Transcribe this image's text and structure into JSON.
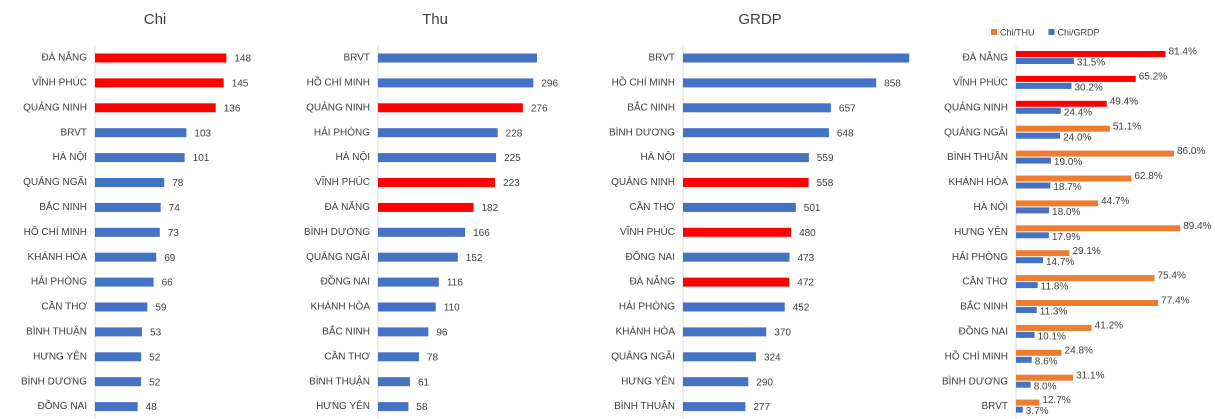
{
  "chart_data": [
    {
      "type": "bar",
      "orientation": "horizontal",
      "title": "Chi",
      "categories": [
        "ĐÀ NẴNG",
        "VĨNH PHÚC",
        "QUẢNG NINH",
        "BRVT",
        "HÀ NỘI",
        "QUẢNG NGÃI",
        "BẮC NINH",
        "HỒ CHÍ MINH",
        "KHÁNH HÒA",
        "HẢI PHÒNG",
        "CẦN THƠ",
        "BÌNH THUẬN",
        "HƯNG YÊN",
        "BÌNH DƯƠNG",
        "ĐỒNG NAI"
      ],
      "values": [
        148,
        145,
        136,
        103,
        101,
        78,
        74,
        73,
        69,
        66,
        59,
        53,
        52,
        52,
        48
      ],
      "colors": [
        "#ff0000",
        "#ff0000",
        "#ff0000",
        "#4472c4",
        "#4472c4",
        "#4472c4",
        "#4472c4",
        "#4472c4",
        "#4472c4",
        "#4472c4",
        "#4472c4",
        "#4472c4",
        "#4472c4",
        "#4472c4",
        "#4472c4"
      ],
      "xlim": [
        0,
        169
      ]
    },
    {
      "type": "bar",
      "orientation": "horizontal",
      "title": "Thu",
      "categories": [
        "BRVT",
        "HỒ CHÍ MINH",
        "QUẢNG NINH",
        "HẢI PHÒNG",
        "HÀ NỘI",
        "VĨNH PHÚC",
        "ĐÀ NẴNG",
        "BÌNH DƯƠNG",
        "QUẢNG NGÃI",
        "ĐỒNG NAI",
        "KHÁNH HÒA",
        "BẮC NINH",
        "CẦN THƠ",
        "BÌNH THUẬN",
        "HƯNG YÊN"
      ],
      "values": [
        303,
        296,
        276,
        228,
        225,
        223,
        182,
        166,
        152,
        116,
        110,
        96,
        78,
        61,
        58
      ],
      "value_labels": [
        null,
        "296",
        "276",
        "228",
        "225",
        "223",
        "182",
        "166",
        "152",
        "116",
        "110",
        "96",
        "78",
        "61",
        "58"
      ],
      "colors": [
        "#4472c4",
        "#4472c4",
        "#ff0000",
        "#4472c4",
        "#4472c4",
        "#ff0000",
        "#ff0000",
        "#4472c4",
        "#4472c4",
        "#4472c4",
        "#4472c4",
        "#4472c4",
        "#4472c4",
        "#4472c4",
        "#4472c4"
      ],
      "xlim": [
        0,
        343
      ]
    },
    {
      "type": "bar",
      "orientation": "horizontal",
      "title": "GRDP",
      "categories": [
        "BRVT",
        "HỒ CHÍ MINH",
        "BẮC NINH",
        "BÌNH DƯƠNG",
        "HÀ NỘI",
        "QUẢNG NINH",
        "CẦN THƠ",
        "VĨNH PHÚC",
        "ĐỒNG NAI",
        "ĐÀ NẴNG",
        "HẢI PHÒNG",
        "KHÁNH HÒA",
        "QUẢNG NGÃI",
        "HƯNG YÊN",
        "BÌNH THUẬN"
      ],
      "values": [
        1005,
        858,
        657,
        648,
        559,
        558,
        501,
        480,
        473,
        472,
        452,
        370,
        324,
        290,
        277
      ],
      "value_labels": [
        null,
        "858",
        "657",
        "648",
        "559",
        "558",
        "501",
        "480",
        "473",
        "472",
        "452",
        "370",
        "324",
        "290",
        "277"
      ],
      "colors": [
        "#4472c4",
        "#4472c4",
        "#4472c4",
        "#4472c4",
        "#4472c4",
        "#ff0000",
        "#4472c4",
        "#ff0000",
        "#4472c4",
        "#ff0000",
        "#4472c4",
        "#4472c4",
        "#4472c4",
        "#4472c4",
        "#4472c4"
      ],
      "xlim": [
        0,
        1066
      ]
    },
    {
      "type": "grouped_bar",
      "orientation": "horizontal",
      "legend": "top",
      "categories": [
        "ĐÀ NẴNG",
        "VĨNH PHÚC",
        "QUẢNG NINH",
        "QUẢNG NGÃI",
        "BÌNH THUẬN",
        "KHÁNH HÒA",
        "HÀ NỘI",
        "HƯNG YÊN",
        "HẢI PHÒNG",
        "CẦN THƠ",
        "BẮC NINH",
        "ĐỒNG NAI",
        "HỒ CHÍ MINH",
        "BÌNH DƯƠNG",
        "BRVT"
      ],
      "series": [
        {
          "name": "Chi/THU",
          "color": "#ed7d31",
          "colors": [
            "#ff0000",
            "#ff0000",
            "#ff0000",
            "#ed7d31",
            "#ed7d31",
            "#ed7d31",
            "#ed7d31",
            "#ed7d31",
            "#ed7d31",
            "#ed7d31",
            "#ed7d31",
            "#ed7d31",
            "#ed7d31",
            "#ed7d31",
            "#ed7d31"
          ],
          "values": [
            81.4,
            65.2,
            49.4,
            51.1,
            86.0,
            62.8,
            44.7,
            89.4,
            29.1,
            75.4,
            77.4,
            41.2,
            24.8,
            31.1,
            12.7
          ],
          "value_labels": [
            "81.4%",
            "65.2%",
            "49.4%",
            "51.1%",
            "86.0%",
            "62.8%",
            "44.7%",
            "89.4%",
            "29.1%",
            "75.4%",
            "77.4%",
            "41.2%",
            "24.8%",
            "31.1%",
            "12.7%"
          ]
        },
        {
          "name": "Chi/GRDP",
          "color": "#4472c4",
          "values": [
            31.5,
            30.2,
            24.4,
            24.0,
            19.0,
            18.7,
            18.0,
            17.9,
            14.7,
            11.8,
            11.3,
            10.1,
            8.6,
            8.0,
            3.7
          ],
          "value_labels": [
            "31.5%",
            "30.2%",
            "24.4%",
            "24.0%",
            "19.0%",
            "18.7%",
            "18.0%",
            "17.9%",
            "14.7%",
            "11.8%",
            "11.3%",
            "10.1%",
            "8.6%",
            "8.0%",
            "3.7%"
          ]
        }
      ],
      "xlim": [
        0,
        98
      ]
    }
  ]
}
